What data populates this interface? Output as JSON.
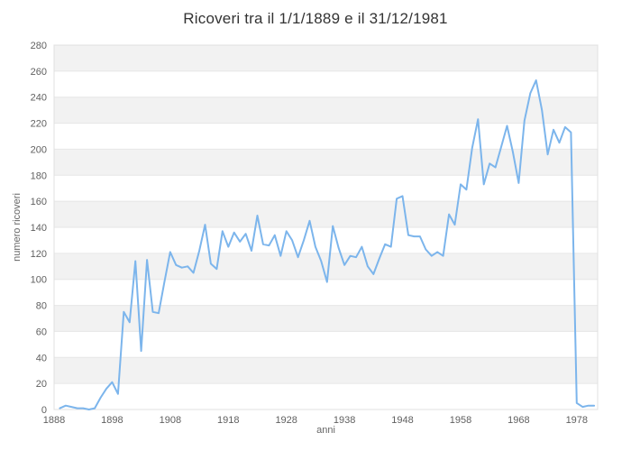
{
  "page": {
    "title": "Ricoveri tra il 1/1/1889 e il 31/12/1981"
  },
  "chart_data": {
    "type": "line",
    "title": "Ricoveri tra il 1/1/1889 e il 31/12/1981",
    "xlabel": "anni",
    "ylabel": "numero ricoveri",
    "series_name": "ricoveri",
    "x": [
      1889,
      1890,
      1891,
      1892,
      1893,
      1894,
      1895,
      1896,
      1897,
      1898,
      1899,
      1900,
      1901,
      1902,
      1903,
      1904,
      1905,
      1906,
      1907,
      1908,
      1909,
      1910,
      1911,
      1912,
      1913,
      1914,
      1915,
      1916,
      1917,
      1918,
      1919,
      1920,
      1921,
      1922,
      1923,
      1924,
      1925,
      1926,
      1927,
      1928,
      1929,
      1930,
      1931,
      1932,
      1933,
      1934,
      1935,
      1936,
      1937,
      1938,
      1939,
      1940,
      1941,
      1942,
      1943,
      1944,
      1945,
      1946,
      1947,
      1948,
      1949,
      1950,
      1951,
      1952,
      1953,
      1954,
      1955,
      1956,
      1957,
      1958,
      1959,
      1960,
      1961,
      1962,
      1963,
      1964,
      1965,
      1966,
      1967,
      1968,
      1969,
      1970,
      1971,
      1972,
      1973,
      1974,
      1975,
      1976,
      1977,
      1978,
      1979,
      1980,
      1981
    ],
    "values": [
      1,
      3,
      2,
      1,
      1,
      0,
      1,
      9,
      16,
      21,
      12,
      75,
      67,
      114,
      45,
      115,
      75,
      74,
      98,
      121,
      111,
      109,
      110,
      105,
      122,
      142,
      112,
      108,
      137,
      125,
      136,
      129,
      135,
      122,
      149,
      127,
      126,
      134,
      118,
      137,
      130,
      117,
      130,
      145,
      125,
      114,
      98,
      141,
      124,
      111,
      118,
      117,
      125,
      110,
      104,
      116,
      127,
      125,
      162,
      164,
      134,
      133,
      133,
      123,
      118,
      121,
      118,
      150,
      142,
      173,
      169,
      201,
      223,
      173,
      189,
      186,
      202,
      218,
      198,
      174,
      222,
      243,
      253,
      230,
      196,
      215,
      205,
      217,
      213,
      5,
      2,
      3,
      3
    ],
    "xlim": [
      1888,
      1981.6
    ],
    "ylim": [
      0,
      280
    ],
    "xticks": [
      1888,
      1898,
      1908,
      1918,
      1928,
      1938,
      1948,
      1958,
      1968,
      1978
    ],
    "yticks": [
      0,
      20,
      40,
      60,
      80,
      100,
      120,
      140,
      160,
      180,
      200,
      220,
      240,
      260,
      280
    ],
    "grid": true,
    "legend": false,
    "band_step": 40,
    "colors": {
      "line": "#7cb5ec",
      "grid_band": "#f2f2f2",
      "gridline": "#e6e6e6",
      "plot_border": "#e0e0e0",
      "title_text": "#333333",
      "tick_text": "#606060",
      "axis_title_text": "#666666",
      "background": "#ffffff"
    }
  }
}
